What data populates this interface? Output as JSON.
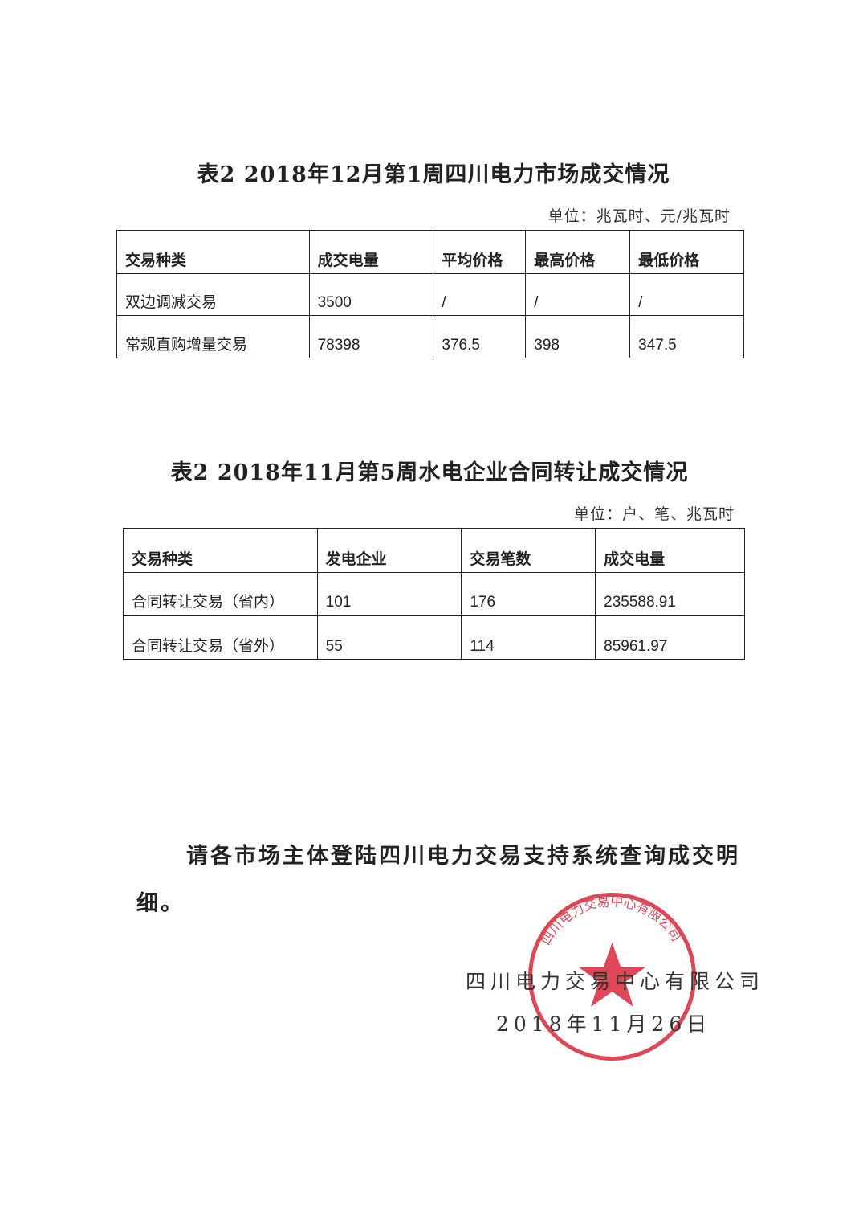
{
  "table1": {
    "title": "表2  2018年12月第1周四川电力市场成交情况",
    "unit": "单位：兆瓦时、元/兆瓦时",
    "headers": [
      "交易种类",
      "成交电量",
      "平均价格",
      "最高价格",
      "最低价格"
    ],
    "rows": [
      [
        "双边调减交易",
        "3500",
        "/",
        "/",
        "/"
      ],
      [
        "常规直购增量交易",
        "78398",
        "376.5",
        "398",
        "347.5"
      ]
    ]
  },
  "table2": {
    "title": "表2  2018年11月第5周水电企业合同转让成交情况",
    "unit": "单位：户、笔、兆瓦时",
    "headers": [
      "交易种类",
      "发电企业",
      "交易笔数",
      "成交电量"
    ],
    "rows": [
      [
        "合同转让交易（省内）",
        "101",
        "176",
        "235588.91"
      ],
      [
        "合同转让交易（省外）",
        "55",
        "114",
        "85961.97"
      ]
    ]
  },
  "notice": {
    "line1": "请各市场主体登陆四川电力交易支持系统查询成交明",
    "line2": "细。"
  },
  "signature": {
    "company": "四川电力交易中心有限公司",
    "date": "2018年11月26日"
  },
  "stamp": {
    "text": "四川电力交易中心有限公司",
    "color": "#d8283c"
  }
}
